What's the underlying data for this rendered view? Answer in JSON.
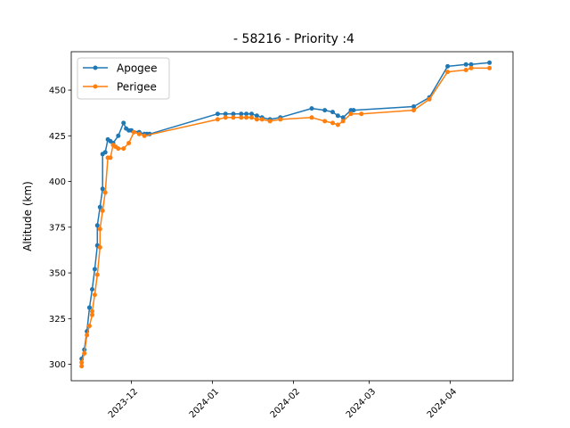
{
  "chart_data": {
    "type": "line",
    "title": "- 58216 - Priority :4",
    "xlabel": "",
    "ylabel": "Altitude (km)",
    "ylim": [
      291,
      471
    ],
    "xlim": [
      "2023-11-08",
      "2024-04-25"
    ],
    "yticks": [
      300,
      325,
      350,
      375,
      400,
      425,
      450
    ],
    "xticks": [
      "2023-12",
      "2024-01",
      "2024-02",
      "2024-03",
      "2024-04"
    ],
    "legend": "top-left",
    "grid": false,
    "series": [
      {
        "name": "Apogee",
        "color": "#1f77b4",
        "x": [
          "2023-11-12",
          "2023-11-13",
          "2023-11-14",
          "2023-11-15",
          "2023-11-15",
          "2023-11-16",
          "2023-11-17",
          "2023-11-18",
          "2023-11-18",
          "2023-11-19",
          "2023-11-20",
          "2023-11-20",
          "2023-11-21",
          "2023-11-22",
          "2023-11-23",
          "2023-11-24",
          "2023-11-26",
          "2023-11-28",
          "2023-11-29",
          "2023-11-30",
          "2023-12-01",
          "2023-12-04",
          "2023-12-06",
          "2023-12-07",
          "2023-12-08",
          "2024-01-03",
          "2024-01-06",
          "2024-01-09",
          "2024-01-12",
          "2024-01-14",
          "2024-01-16",
          "2024-01-18",
          "2024-01-20",
          "2024-01-23",
          "2024-01-27",
          "2024-02-08",
          "2024-02-13",
          "2024-02-16",
          "2024-02-18",
          "2024-02-20",
          "2024-02-23",
          "2024-02-24",
          "2024-03-18",
          "2024-03-24",
          "2024-03-31",
          "2024-04-07",
          "2024-04-09",
          "2024-04-16"
        ],
        "values": [
          303,
          308,
          318,
          331,
          331,
          341,
          352,
          365,
          376,
          386,
          396,
          415,
          416,
          423,
          422,
          421,
          425,
          432,
          429,
          428,
          428,
          427,
          426,
          426,
          426,
          437,
          437,
          437,
          437,
          437,
          437,
          436,
          435,
          434,
          435,
          440,
          439,
          438,
          436,
          435,
          439,
          439,
          441,
          446,
          463,
          464,
          464,
          465
        ]
      },
      {
        "name": "Perigee",
        "color": "#ff7f0e",
        "x": [
          "2023-11-12",
          "2023-11-12",
          "2023-11-13",
          "2023-11-14",
          "2023-11-15",
          "2023-11-16",
          "2023-11-16",
          "2023-11-17",
          "2023-11-18",
          "2023-11-19",
          "2023-11-19",
          "2023-11-20",
          "2023-11-21",
          "2023-11-22",
          "2023-11-23",
          "2023-11-24",
          "2023-11-25",
          "2023-11-26",
          "2023-11-28",
          "2023-11-30",
          "2023-12-02",
          "2023-12-04",
          "2023-12-06",
          "2024-01-03",
          "2024-01-06",
          "2024-01-09",
          "2024-01-12",
          "2024-01-14",
          "2024-01-16",
          "2024-01-18",
          "2024-01-20",
          "2024-01-23",
          "2024-01-27",
          "2024-02-08",
          "2024-02-13",
          "2024-02-16",
          "2024-02-18",
          "2024-02-20",
          "2024-02-23",
          "2024-02-27",
          "2024-03-18",
          "2024-03-24",
          "2024-03-31",
          "2024-04-07",
          "2024-04-09",
          "2024-04-16"
        ],
        "values": [
          299,
          301,
          306,
          316,
          321,
          327,
          329,
          338,
          349,
          364,
          374,
          384,
          394,
          413,
          413,
          420,
          419,
          418,
          418,
          421,
          427,
          426,
          425,
          434,
          435,
          435,
          435,
          435,
          435,
          434,
          434,
          433,
          434,
          435,
          433,
          432,
          431,
          433,
          437,
          437,
          439,
          445,
          460,
          461,
          462,
          462
        ]
      }
    ]
  }
}
